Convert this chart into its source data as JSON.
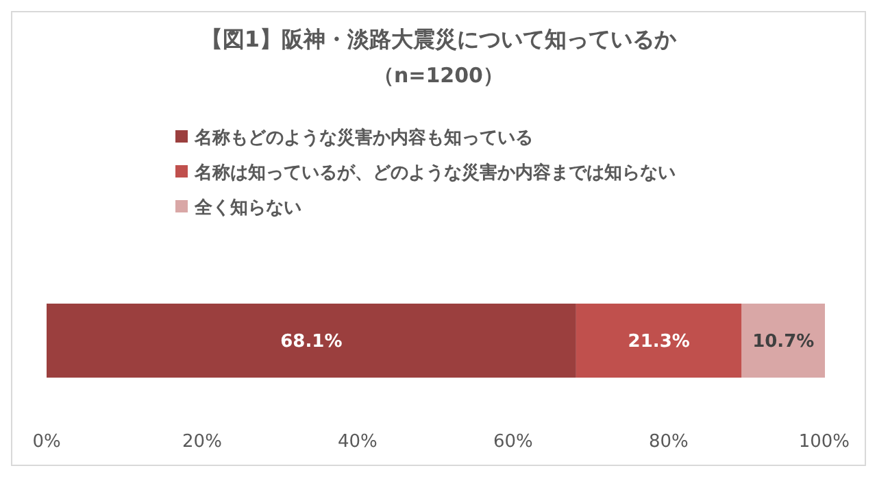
{
  "chart_data": {
    "type": "bar",
    "orientation": "horizontal",
    "stacked": true,
    "title": "【図1】阪神・淡路大震災について知っているか",
    "subtitle": "（n=1200）",
    "categories": [
      null
    ],
    "series": [
      {
        "name": "名称もどのような災害か内容も知っている",
        "color": "#9b3f3e",
        "values": [
          68.1
        ],
        "value_labels": [
          "68.1%"
        ]
      },
      {
        "name": "名称は知っているが、どのような災害か内容までは知らない",
        "color": "#c0504d",
        "values": [
          21.3
        ],
        "value_labels": [
          "21.3%"
        ]
      },
      {
        "name": "全く知らない",
        "color": "#d9a7a6",
        "values": [
          10.7
        ],
        "value_labels": [
          "10.7%"
        ]
      }
    ],
    "xlim": [
      0,
      100.1
    ],
    "xticks": [
      {
        "value": 0,
        "label": "0%"
      },
      {
        "value": 20,
        "label": "20%"
      },
      {
        "value": 40,
        "label": "40%"
      },
      {
        "value": 60,
        "label": "60%"
      },
      {
        "value": 80,
        "label": "80%"
      },
      {
        "value": 100,
        "label": "100%"
      }
    ],
    "grid": false,
    "legend": "top"
  }
}
